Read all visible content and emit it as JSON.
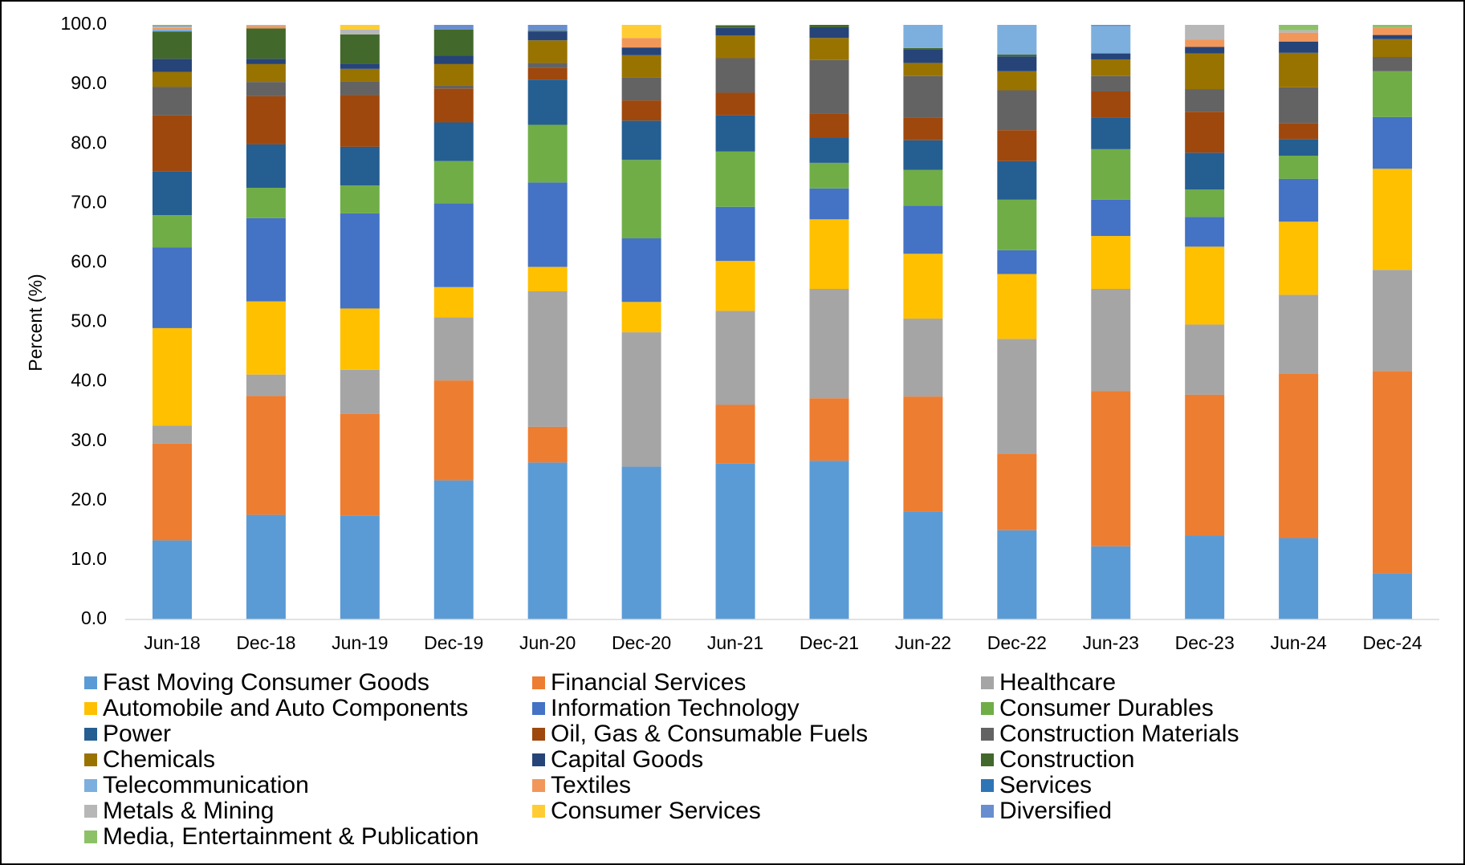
{
  "chart_data": {
    "type": "stacked_bar",
    "y_axis_label": "Percent (%)",
    "categories": [
      "Jun-18",
      "Dec-18",
      "Jun-19",
      "Dec-19",
      "Jun-20",
      "Dec-20",
      "Jun-21",
      "Dec-21",
      "Jun-22",
      "Dec-22",
      "Jun-23",
      "Dec-23",
      "Jun-24",
      "Dec-24"
    ],
    "ylim": [
      0,
      100
    ],
    "yticks": [
      {
        "value": 0,
        "label": "0.0"
      },
      {
        "value": 10,
        "label": "10.0"
      },
      {
        "value": 20,
        "label": "20.0"
      },
      {
        "value": 30,
        "label": "30.0"
      },
      {
        "value": 40,
        "label": "40.0"
      },
      {
        "value": 50,
        "label": "50.0"
      },
      {
        "value": 60,
        "label": "60.0"
      },
      {
        "value": 70,
        "label": "70.0"
      },
      {
        "value": 80,
        "label": "80.0"
      },
      {
        "value": 90,
        "label": "90.0"
      },
      {
        "value": 100,
        "label": "100.0"
      }
    ],
    "legend_position": "bottom",
    "series": [
      {
        "name": "Fast Moving Consumer Goods",
        "color": "#5b9bd5",
        "values": [
          13.3,
          17.6,
          17.5,
          23.4,
          26.4,
          25.7,
          26.2,
          26.7,
          18.2,
          15.0,
          12.3,
          14.1,
          13.7,
          7.8
        ]
      },
      {
        "name": "Financial Services",
        "color": "#ed7d31",
        "values": [
          16.3,
          20.0,
          17.1,
          16.8,
          6.0,
          0,
          9.9,
          10.5,
          19.3,
          12.9,
          26.1,
          23.7,
          27.6,
          34.0
        ]
      },
      {
        "name": "Healthcare",
        "color": "#a5a5a5",
        "values": [
          3.0,
          3.6,
          7.4,
          10.6,
          22.8,
          22.6,
          15.8,
          18.4,
          13.1,
          19.3,
          17.2,
          11.8,
          13.3,
          17.0
        ]
      },
      {
        "name": "Automobile and Auto Components",
        "color": "#ffc000",
        "values": [
          16.4,
          12.3,
          10.3,
          5.1,
          4.1,
          5.1,
          8.4,
          11.7,
          10.9,
          10.9,
          8.9,
          13.1,
          12.3,
          17.0
        ]
      },
      {
        "name": "Information Technology",
        "color": "#4472c4",
        "values": [
          13.6,
          14.0,
          16.0,
          14.1,
          14.2,
          10.7,
          9.1,
          5.2,
          8.1,
          4.0,
          6.1,
          5.0,
          7.2,
          8.7
        ]
      },
      {
        "name": "Consumer Durables",
        "color": "#70ad47",
        "values": [
          5.4,
          5.1,
          4.7,
          7.1,
          9.7,
          13.2,
          9.3,
          4.3,
          6.0,
          8.5,
          8.5,
          4.6,
          3.9,
          7.7
        ]
      },
      {
        "name": "Power",
        "color": "#255e91",
        "values": [
          7.4,
          7.3,
          6.5,
          6.5,
          7.6,
          6.6,
          6.1,
          4.3,
          5.0,
          6.5,
          5.3,
          6.2,
          2.8,
          0
        ]
      },
      {
        "name": "Oil, Gas & Consumable Fuels",
        "color": "#9e480e",
        "values": [
          9.4,
          8.1,
          8.7,
          5.7,
          2.0,
          3.4,
          3.8,
          4.0,
          3.8,
          5.2,
          4.4,
          6.9,
          2.7,
          0
        ]
      },
      {
        "name": "Construction Materials",
        "color": "#636363",
        "values": [
          4.8,
          2.4,
          2.3,
          0.5,
          0.8,
          3.9,
          5.8,
          9.0,
          7.0,
          6.7,
          2.6,
          3.8,
          6.0,
          2.4
        ]
      },
      {
        "name": "Chemicals",
        "color": "#997300",
        "values": [
          2.5,
          3.0,
          2.1,
          3.6,
          3.8,
          3.7,
          3.8,
          3.7,
          2.2,
          3.2,
          2.8,
          6.0,
          5.8,
          3.0
        ]
      },
      {
        "name": "Capital Goods",
        "color": "#264478",
        "values": [
          2.2,
          0.9,
          0.9,
          1.4,
          1.5,
          1.3,
          1.3,
          1.8,
          2.3,
          2.5,
          1.0,
          1.1,
          1.9,
          0.7
        ]
      },
      {
        "name": "Construction",
        "color": "#43682b",
        "values": [
          4.6,
          5.1,
          4.9,
          4.4,
          0.1,
          0,
          0.4,
          0.4,
          0.2,
          0.3,
          0,
          0,
          0,
          0
        ]
      },
      {
        "name": "Telecommunication",
        "color": "#7cafdd",
        "values": [
          0.3,
          0,
          0,
          0,
          0,
          0,
          0,
          0,
          3.9,
          5.0,
          4.6,
          0,
          0,
          0
        ]
      },
      {
        "name": "Textiles",
        "color": "#f1975a",
        "values": [
          0.3,
          0.4,
          0,
          0,
          0,
          1.6,
          0,
          0,
          0,
          0,
          0,
          1.2,
          1.5,
          1.2
        ]
      },
      {
        "name": "Services",
        "color": "#2e75b6",
        "values": [
          0,
          0,
          0,
          0,
          0,
          0,
          0,
          0,
          0,
          0,
          0,
          0,
          0,
          0
        ]
      },
      {
        "name": "Metals & Mining",
        "color": "#b7b7b7",
        "values": [
          0.2,
          0.2,
          0.8,
          0,
          0,
          0,
          0,
          0,
          0,
          0,
          0,
          2.5,
          0.4,
          0
        ]
      },
      {
        "name": "Consumer Services",
        "color": "#ffcd33",
        "values": [
          0,
          0,
          0.8,
          0,
          0,
          2.2,
          0,
          0,
          0,
          0,
          0,
          0,
          0,
          0
        ]
      },
      {
        "name": "Diversified",
        "color": "#698ed0",
        "values": [
          0.1,
          0,
          0,
          0.8,
          1.0,
          0,
          0,
          0,
          0,
          0,
          0.2,
          0,
          0,
          0
        ]
      },
      {
        "name": "Media, Entertainment & Publication",
        "color": "#8cc168",
        "values": [
          0.2,
          0,
          0,
          0,
          0,
          0,
          0.1,
          0,
          0,
          0,
          0,
          0,
          0.9,
          0.5
        ]
      }
    ]
  }
}
